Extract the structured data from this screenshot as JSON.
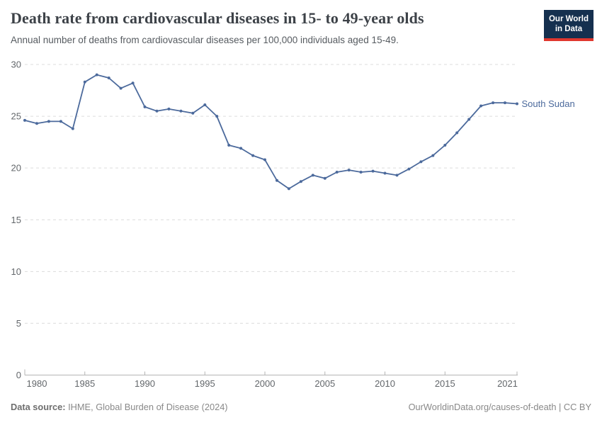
{
  "header": {
    "title": "Death rate from cardiovascular diseases in 15- to 49-year olds",
    "subtitle": "Annual number of deaths from cardiovascular diseases per 100,000 individuals aged 15-49."
  },
  "logo": {
    "line1": "Our World",
    "line2": "in Data",
    "bg_color": "#15304f",
    "accent_color": "#e0372e"
  },
  "chart_data": {
    "type": "line",
    "title": "Death rate from cardiovascular diseases in 15- to 49-year olds",
    "subtitle": "Annual number of deaths from cardiovascular diseases per 100,000 individuals aged 15-49.",
    "xlabel": "",
    "ylabel": "",
    "xlim": [
      1980,
      2021
    ],
    "ylim": [
      0,
      30
    ],
    "xticks": [
      1980,
      1985,
      1990,
      1995,
      2000,
      2005,
      2010,
      2015,
      2021
    ],
    "yticks": [
      0,
      5,
      10,
      15,
      20,
      25,
      30
    ],
    "grid": "horizontal-dashed",
    "legend_position": "end-of-line",
    "series": [
      {
        "name": "South Sudan",
        "color": "#4C6A9C",
        "x": [
          1980,
          1981,
          1982,
          1983,
          1984,
          1985,
          1986,
          1987,
          1988,
          1989,
          1990,
          1991,
          1992,
          1993,
          1994,
          1995,
          1996,
          1997,
          1998,
          1999,
          2000,
          2001,
          2002,
          2003,
          2004,
          2005,
          2006,
          2007,
          2008,
          2009,
          2010,
          2011,
          2012,
          2013,
          2014,
          2015,
          2016,
          2017,
          2018,
          2019,
          2020,
          2021
        ],
        "values": [
          24.6,
          24.3,
          24.5,
          24.5,
          23.8,
          28.3,
          29.0,
          28.7,
          27.7,
          28.2,
          25.9,
          25.5,
          25.7,
          25.5,
          25.3,
          26.1,
          25.0,
          22.2,
          21.9,
          21.2,
          20.8,
          18.8,
          18.0,
          18.7,
          19.3,
          19.0,
          19.6,
          19.8,
          19.6,
          19.7,
          19.5,
          19.3,
          19.9,
          20.6,
          21.2,
          22.2,
          23.4,
          24.7,
          26.0,
          26.3,
          26.3,
          26.2
        ]
      }
    ],
    "colors": {
      "gridline": "#dcdcdc",
      "axis": "#b4b4b4",
      "tick_text": "#63676b"
    }
  },
  "footer": {
    "source_label": "Data source:",
    "source_value": "IHME, Global Burden of Disease (2024)",
    "credit": "OurWorldinData.org/causes-of-death | CC BY"
  }
}
